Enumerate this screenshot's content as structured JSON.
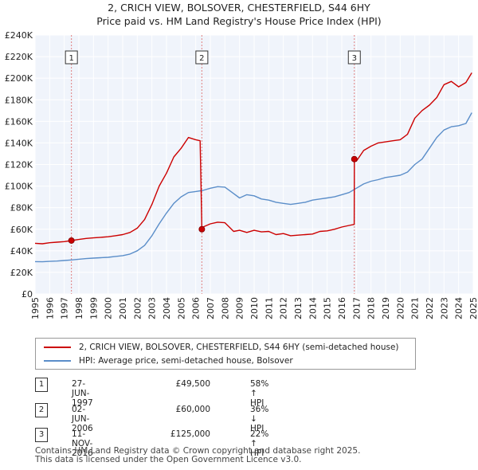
{
  "title": {
    "line1": "2, CRICH VIEW, BOLSOVER, CHESTERFIELD, S44 6HY",
    "line2": "Price paid vs. HM Land Registry's House Price Index (HPI)"
  },
  "chart_data": {
    "type": "line",
    "xlim": [
      1995.0,
      2025.0
    ],
    "ylim": [
      0,
      240000
    ],
    "y_ticks": [
      {
        "value": 0,
        "label": "£0"
      },
      {
        "value": 20000,
        "label": "£20K"
      },
      {
        "value": 40000,
        "label": "£40K"
      },
      {
        "value": 60000,
        "label": "£60K"
      },
      {
        "value": 80000,
        "label": "£80K"
      },
      {
        "value": 100000,
        "label": "£100K"
      },
      {
        "value": 120000,
        "label": "£120K"
      },
      {
        "value": 140000,
        "label": "£140K"
      },
      {
        "value": 160000,
        "label": "£160K"
      },
      {
        "value": 180000,
        "label": "£180K"
      },
      {
        "value": 200000,
        "label": "£200K"
      },
      {
        "value": 220000,
        "label": "£220K"
      },
      {
        "value": 240000,
        "label": "£240K"
      }
    ],
    "x_ticks": [
      "1995",
      "1996",
      "1997",
      "1998",
      "1999",
      "2000",
      "2001",
      "2002",
      "2003",
      "2004",
      "2005",
      "2006",
      "2007",
      "2008",
      "2009",
      "2010",
      "2011",
      "2012",
      "2013",
      "2014",
      "2015",
      "2016",
      "2017",
      "2018",
      "2019",
      "2020",
      "2021",
      "2022",
      "2023",
      "2024",
      "2025"
    ],
    "grid": true,
    "series": [
      {
        "name": "2, CRICH VIEW, BOLSOVER, CHESTERFIELD, S44 6HY (semi-detached house)",
        "color": "#cc0000",
        "x": [
          1995.0,
          1995.5,
          1996.0,
          1996.5,
          1997.0,
          1997.49,
          1998.0,
          1998.5,
          1999.0,
          1999.5,
          2000.0,
          2000.5,
          2001.0,
          2001.5,
          2002.0,
          2002.5,
          2003.0,
          2003.5,
          2004.0,
          2004.5,
          2005.0,
          2005.5,
          2006.0,
          2006.3,
          2006.42,
          2006.5,
          2007.0,
          2007.5,
          2008.0,
          2008.3,
          2008.6,
          2009.0,
          2009.5,
          2010.0,
          2010.5,
          2011.0,
          2011.5,
          2012.0,
          2012.5,
          2013.0,
          2013.5,
          2014.0,
          2014.5,
          2015.0,
          2015.5,
          2016.0,
          2016.5,
          2016.85,
          2016.86,
          2017.0,
          2017.5,
          2018.0,
          2018.5,
          2019.0,
          2019.5,
          2020.0,
          2020.5,
          2021.0,
          2021.5,
          2022.0,
          2022.5,
          2023.0,
          2023.5,
          2024.0,
          2024.5,
          2024.9
        ],
        "y": [
          47000,
          46500,
          47500,
          48000,
          48500,
          49500,
          50500,
          51500,
          52000,
          52500,
          53000,
          54000,
          55000,
          57000,
          61000,
          69000,
          83000,
          100000,
          112000,
          127000,
          135000,
          145000,
          143000,
          142000,
          60000,
          62000,
          65000,
          66500,
          66000,
          62000,
          58000,
          59000,
          57000,
          59000,
          57500,
          58000,
          55000,
          56000,
          54000,
          54500,
          55000,
          55500,
          58000,
          58500,
          60000,
          62000,
          63500,
          64500,
          125000,
          123000,
          133000,
          137000,
          140000,
          141000,
          142000,
          143000,
          148000,
          163000,
          170000,
          175000,
          182000,
          194000,
          197000,
          192000,
          196000,
          205000
        ]
      },
      {
        "name": "HPI: Average price, semi-detached house, Bolsover",
        "color": "#5b8ec9",
        "x": [
          1995.0,
          1995.5,
          1996.0,
          1996.5,
          1997.0,
          1997.5,
          1998.0,
          1998.5,
          1999.0,
          1999.5,
          2000.0,
          2000.5,
          2001.0,
          2001.5,
          2002.0,
          2002.5,
          2003.0,
          2003.5,
          2004.0,
          2004.5,
          2005.0,
          2005.5,
          2006.0,
          2006.5,
          2007.0,
          2007.5,
          2008.0,
          2008.5,
          2009.0,
          2009.5,
          2010.0,
          2010.5,
          2011.0,
          2011.5,
          2012.0,
          2012.5,
          2013.0,
          2013.5,
          2014.0,
          2014.5,
          2015.0,
          2015.5,
          2016.0,
          2016.5,
          2017.0,
          2017.5,
          2018.0,
          2018.5,
          2019.0,
          2019.5,
          2020.0,
          2020.5,
          2021.0,
          2021.5,
          2022.0,
          2022.5,
          2023.0,
          2023.5,
          2024.0,
          2024.5,
          2024.9
        ],
        "y": [
          30000,
          29800,
          30200,
          30500,
          31000,
          31500,
          32200,
          32800,
          33200,
          33600,
          34000,
          34800,
          35500,
          37000,
          40000,
          45000,
          54000,
          65000,
          75000,
          84000,
          90000,
          94000,
          95000,
          96000,
          98000,
          99500,
          99000,
          94000,
          89000,
          92000,
          91000,
          88000,
          87000,
          85000,
          84000,
          83000,
          84000,
          85000,
          87000,
          88000,
          89000,
          90000,
          92000,
          94000,
          98000,
          102000,
          104500,
          106000,
          108000,
          109000,
          110000,
          113000,
          120000,
          125000,
          135000,
          145000,
          152000,
          155000,
          156000,
          158000,
          168000
        ]
      }
    ],
    "sales": [
      {
        "num": "1",
        "x": 1997.49,
        "y": 49500
      },
      {
        "num": "2",
        "x": 2006.42,
        "y": 60000
      },
      {
        "num": "3",
        "x": 2016.86,
        "y": 125000
      }
    ]
  },
  "legend": {
    "property_label": "2, CRICH VIEW, BOLSOVER, CHESTERFIELD, S44 6HY (semi-detached house)",
    "hpi_label": "HPI: Average price, semi-detached house, Bolsover"
  },
  "transactions": [
    {
      "num": "1",
      "date": "27-JUN-1997",
      "price": "£49,500",
      "hpi": "58% ↑ HPI"
    },
    {
      "num": "2",
      "date": "02-JUN-2006",
      "price": "£60,000",
      "hpi": "36% ↓ HPI"
    },
    {
      "num": "3",
      "date": "11-NOV-2016",
      "price": "£125,000",
      "hpi": "22% ↑ HPI"
    }
  ],
  "footer": {
    "line1": "Contains HM Land Registry data © Crown copyright and database right 2025.",
    "line2": "This data is licensed under the Open Government Licence v3.0."
  }
}
